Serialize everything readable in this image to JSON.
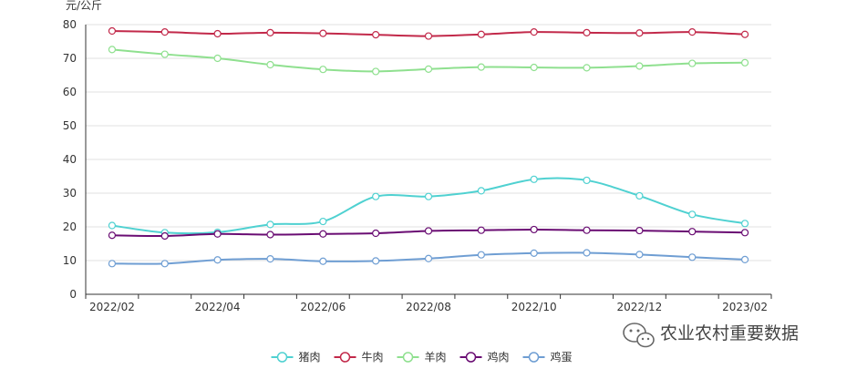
{
  "chart_data": {
    "type": "line",
    "ylabel": "元/公斤",
    "xlabel": "",
    "ylim": [
      0,
      80
    ],
    "yticks": [
      0,
      10,
      20,
      30,
      40,
      50,
      60,
      70,
      80
    ],
    "x": [
      "2022/02",
      "2022/03",
      "2022/04",
      "2022/05",
      "2022/06",
      "2022/07",
      "2022/08",
      "2022/09",
      "2022/10",
      "2022/11",
      "2022/12",
      "2023/01",
      "2023/02"
    ],
    "xtick_labels": [
      "2022/02",
      "2022/04",
      "2022/06",
      "2022/08",
      "2022/10",
      "2022/12",
      "2023/02"
    ],
    "grid": "horizontal",
    "legend_position": "bottom",
    "series": [
      {
        "name": "猪肉",
        "color": "#4fd1d1",
        "values": [
          20.4,
          18.3,
          18.4,
          20.7,
          21.6,
          29.0,
          29.0,
          30.7,
          34.1,
          33.8,
          29.2,
          23.7,
          21.0
        ]
      },
      {
        "name": "牛肉",
        "color": "#c2294a",
        "values": [
          78.1,
          77.8,
          77.3,
          77.6,
          77.4,
          77.0,
          76.6,
          77.1,
          77.8,
          77.6,
          77.5,
          77.8,
          77.1
        ]
      },
      {
        "name": "羊肉",
        "color": "#8fe08f",
        "values": [
          72.6,
          71.2,
          70.0,
          68.1,
          66.7,
          66.1,
          66.8,
          67.4,
          67.3,
          67.2,
          67.7,
          68.5,
          68.7
        ]
      },
      {
        "name": "鸡肉",
        "color": "#6a0d73",
        "values": [
          17.5,
          17.3,
          17.9,
          17.7,
          17.9,
          18.1,
          18.8,
          19.0,
          19.2,
          19.0,
          18.9,
          18.6,
          18.3
        ]
      },
      {
        "name": "鸡蛋",
        "color": "#6f9ed3",
        "values": [
          9.1,
          9.1,
          10.2,
          10.5,
          9.8,
          9.9,
          10.6,
          11.7,
          12.2,
          12.3,
          11.8,
          11.0,
          10.3
        ]
      }
    ]
  },
  "watermark": {
    "text": "农业农村重要数据",
    "icon": "wechat-icon"
  }
}
